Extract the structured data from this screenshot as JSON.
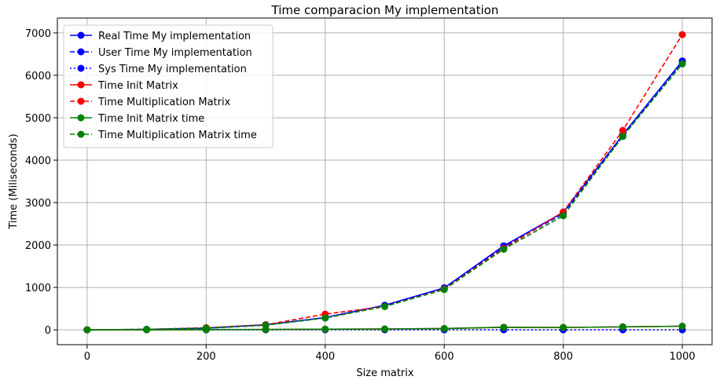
{
  "chart_data": {
    "type": "line",
    "title": "Time comparacion My implementation",
    "xlabel": "Size matrix",
    "ylabel": "Time (Miliseconds)",
    "xlim": [
      -50,
      1050
    ],
    "ylim": [
      -350,
      7350
    ],
    "xticks": [
      0,
      200,
      400,
      600,
      800,
      1000
    ],
    "yticks": [
      0,
      1000,
      2000,
      3000,
      4000,
      5000,
      6000,
      7000
    ],
    "grid": true,
    "legend_position": "top-left",
    "x": [
      0,
      100,
      200,
      300,
      400,
      500,
      600,
      700,
      800,
      900,
      1000
    ],
    "series": [
      {
        "name": "Real Time My implementation",
        "color": "#0000ff",
        "linestyle": "solid",
        "values": [
          0,
          10,
          40,
          120,
          290,
          580,
          990,
          1980,
          2770,
          4600,
          6340
        ]
      },
      {
        "name": "User Time My implementation",
        "color": "#0000ff",
        "linestyle": "dashed",
        "values": [
          0,
          8,
          35,
          110,
          280,
          560,
          970,
          1950,
          2740,
          4560,
          6290
        ]
      },
      {
        "name": "Sys Time My implementation",
        "color": "#0000ff",
        "linestyle": "dotted",
        "values": [
          0,
          0,
          0,
          0,
          0,
          0,
          0,
          0,
          0,
          0,
          0
        ]
      },
      {
        "name": "Time Init Matrix",
        "color": "#ff0000",
        "linestyle": "solid",
        "values": [
          0,
          1,
          5,
          8,
          15,
          20,
          30,
          60,
          55,
          70,
          85
        ]
      },
      {
        "name": "Time Multiplication Matrix",
        "color": "#ff0000",
        "linestyle": "dashed",
        "values": [
          0,
          10,
          50,
          120,
          370,
          550,
          960,
          1920,
          2780,
          4700,
          6960
        ]
      },
      {
        "name": "Time Init Matrix time",
        "color": "#008000",
        "linestyle": "solid",
        "values": [
          0,
          1,
          5,
          8,
          15,
          20,
          30,
          60,
          55,
          70,
          85
        ]
      },
      {
        "name": "Time Multiplication Matrix time",
        "color": "#008000",
        "linestyle": "dashed",
        "values": [
          0,
          10,
          40,
          110,
          280,
          550,
          950,
          1900,
          2690,
          4560,
          6270
        ]
      }
    ]
  }
}
